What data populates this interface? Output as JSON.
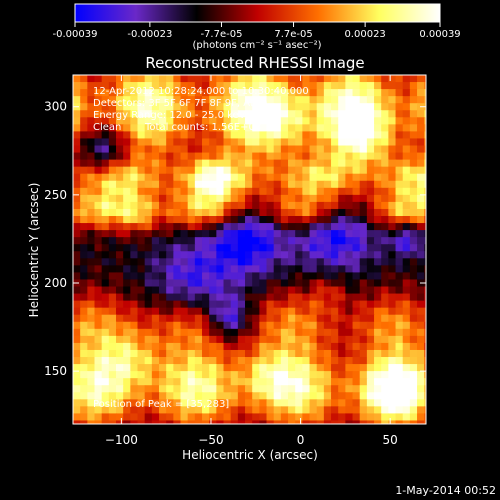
{
  "chart_data": {
    "type": "heatmap",
    "title": "Reconstructed RHESSI Image",
    "xlabel": "Heliocentric X (arcsec)",
    "ylabel": "Heliocentric Y (arcsec)",
    "xlim": [
      -127,
      70
    ],
    "ylim": [
      120,
      318
    ],
    "x_ticks": [
      -100,
      -50,
      0,
      50
    ],
    "y_ticks": [
      150,
      200,
      250,
      300
    ],
    "colorbar": {
      "range": [
        -0.00039,
        0.00039
      ],
      "tick_values": [
        -0.00039,
        -0.00023,
        -7.7e-05,
        7.7e-05,
        0.00023,
        0.00039
      ],
      "tick_labels": [
        "-0.00039",
        "-0.00023",
        "-7.7e-05",
        "7.7e-05",
        "0.00023",
        "0.00039"
      ],
      "unit_label": "(photons cm⁻² s⁻¹ asec⁻²)",
      "colors": [
        "#0000ff",
        "#6a28c8",
        "#000000",
        "#c00000",
        "#ff7000",
        "#ffff60",
        "#ffffff"
      ]
    },
    "annotations": {
      "time_range": "12-Apr-2012 10:28:24.000 to 10:30:40.000",
      "detectors": "Detectors: 3F 5F 6F 7F 8F 9F, Att 0",
      "energy_range": "Energy Range: 12.0 - 25.0 keV",
      "method": "Clean",
      "total_counts": "Total counts: 1.56E+03",
      "peak": "Position of Peak = [35,283]"
    },
    "timestamp": "1-May-2014 00:52",
    "image": {
      "bands": [
        {
          "y_center": 300,
          "x_extent": [
            -127,
            70
          ],
          "value": 0.00035,
          "width": 28
        },
        {
          "y_center": 258,
          "x_extent": [
            -127,
            70
          ],
          "value": 0.00027,
          "width": 14
        },
        {
          "y_center": 240,
          "x_extent": [
            -127,
            70
          ],
          "value": 0.00022,
          "width": 10
        },
        {
          "y_center": 178,
          "x_extent": [
            -127,
            70
          ],
          "value": 0.00018,
          "width": 18
        },
        {
          "y_center": 140,
          "x_extent": [
            -127,
            70
          ],
          "value": 0.00033,
          "width": 24
        }
      ],
      "hotspots": [
        {
          "x": 35,
          "y": 283,
          "value": 0.00039,
          "radius": 18
        },
        {
          "x": -10,
          "y": 292,
          "value": 0.00034,
          "radius": 20
        },
        {
          "x": -95,
          "y": 158,
          "value": 0.00036,
          "radius": 18
        },
        {
          "x": -20,
          "y": 148,
          "value": 0.0003,
          "radius": 16
        },
        {
          "x": 50,
          "y": 138,
          "value": 0.00036,
          "radius": 18
        },
        {
          "x": 15,
          "y": 195,
          "value": 0.0002,
          "radius": 10
        },
        {
          "x": -90,
          "y": 238,
          "value": 0.00025,
          "radius": 10
        },
        {
          "x": -50,
          "y": 258,
          "value": 0.00028,
          "radius": 12
        }
      ],
      "coldspots": [
        {
          "x": -30,
          "y": 225,
          "value": -0.00033,
          "radius": 20
        },
        {
          "x": -60,
          "y": 200,
          "value": -0.00025,
          "radius": 22
        },
        {
          "x": 20,
          "y": 230,
          "value": -0.0003,
          "radius": 22
        },
        {
          "x": -40,
          "y": 180,
          "value": -0.0003,
          "radius": 12
        },
        {
          "x": -110,
          "y": 275,
          "value": -0.00028,
          "radius": 14
        },
        {
          "x": 60,
          "y": 225,
          "value": -0.00022,
          "radius": 10
        }
      ]
    }
  }
}
